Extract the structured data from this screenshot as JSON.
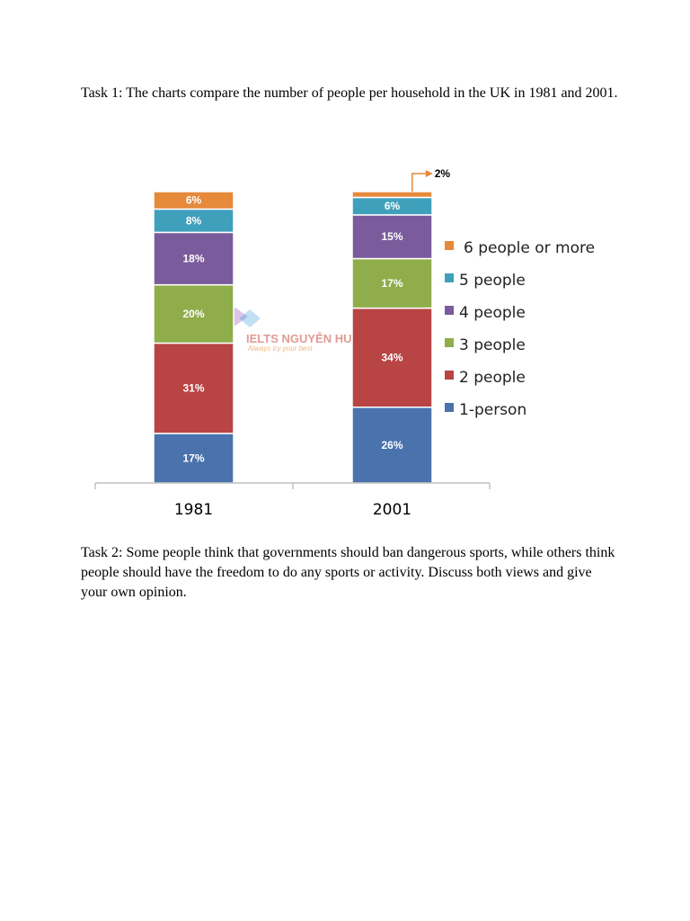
{
  "task1": {
    "prefix": "Task 1:",
    "text": " The charts compare the number of people per household in the UK in 1981 and 2001."
  },
  "task2": {
    "prefix": "Task 2:",
    "text": " Some people think that governments should ban dangerous sports, while others think people should have the freedom to do any sports or activity. Discuss both views and give your own opinion."
  },
  "watermark": {
    "brand": "IELTS NGUYỄN HUYỀN",
    "tagline": "Always try your best"
  },
  "chart_data": {
    "type": "bar",
    "stacked": true,
    "categories": [
      "1981",
      "2001"
    ],
    "ylim": [
      0,
      100
    ],
    "unit": "%",
    "series": [
      {
        "name": "1-person",
        "color": "#4a73ad",
        "values": [
          17,
          26
        ]
      },
      {
        "name": "2 people",
        "color": "#b84444",
        "values": [
          31,
          34
        ]
      },
      {
        "name": "3 people",
        "color": "#8fad4a",
        "values": [
          20,
          17
        ]
      },
      {
        "name": "4 people",
        "color": "#7a5b9b",
        "values": [
          18,
          15
        ]
      },
      {
        "name": "5 people",
        "color": "#3fa0bb",
        "values": [
          8,
          6
        ]
      },
      {
        "name": "6 people or more",
        "color": "#e6893b",
        "values": [
          6,
          2
        ]
      }
    ],
    "callout": {
      "text": "2%",
      "category": "2001",
      "series": "6 people or more"
    },
    "legend": "right",
    "legend_order": [
      "6 people or more",
      "5 people",
      "4 people",
      "3 people",
      "2 people",
      "1-person"
    ],
    "grid": false,
    "title": "",
    "xlabel": "",
    "ylabel": ""
  }
}
